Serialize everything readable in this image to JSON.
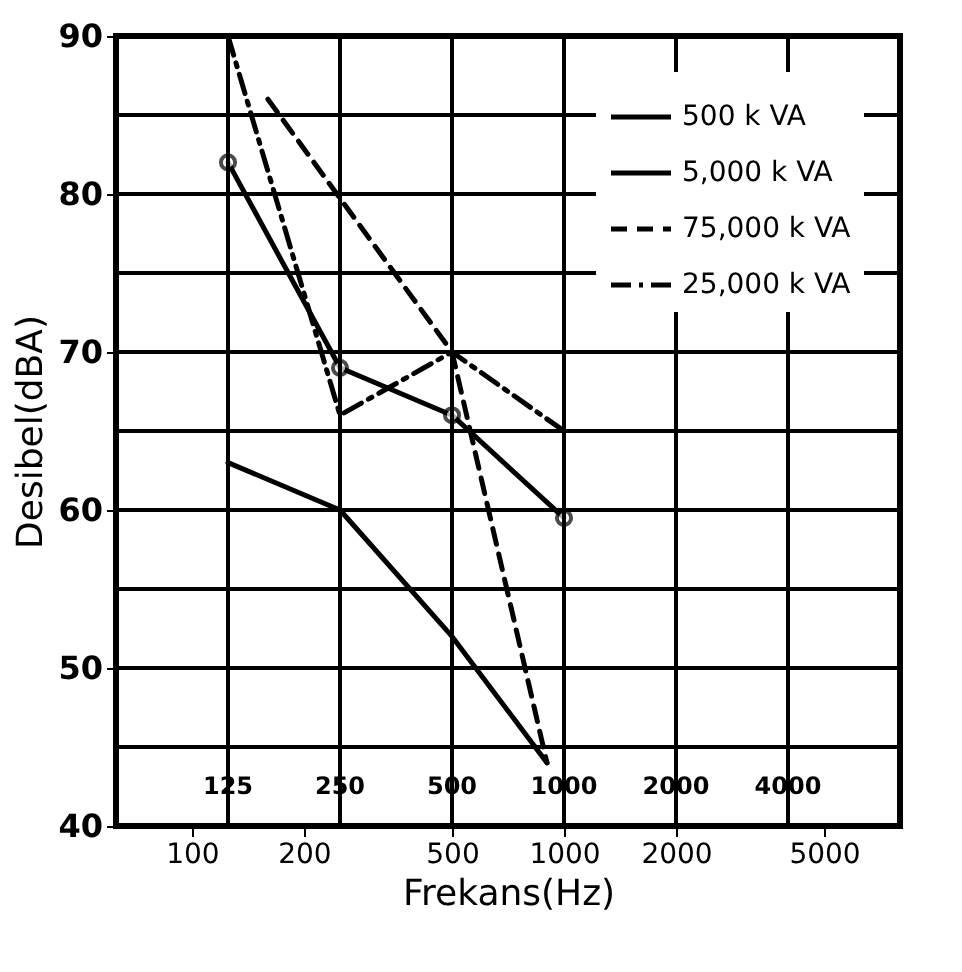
{
  "chart_data": {
    "type": "line",
    "xlabel": "Frekans(Hz)",
    "ylabel": "Desibel(dBA)",
    "log": "x",
    "xlim": [
      62.5,
      8000
    ],
    "xticks": [
      100,
      200,
      500,
      1000,
      2000,
      5000
    ],
    "ref_lines": [
      {
        "axis": "x",
        "value": 125,
        "label": "125"
      },
      {
        "axis": "x",
        "value": 250,
        "label": "250"
      },
      {
        "axis": "x",
        "value": 500,
        "label": "500"
      },
      {
        "axis": "x",
        "value": 1000,
        "label": "1000"
      },
      {
        "axis": "x",
        "value": 2000,
        "label": "2000"
      },
      {
        "axis": "x",
        "value": 4000,
        "label": "4000"
      }
    ],
    "ylim": [
      40,
      90
    ],
    "yticks": [
      40,
      {
        "value": 45,
        "label": null
      },
      50,
      {
        "value": 55,
        "label": null
      },
      60,
      {
        "value": 65,
        "label": null
      },
      70,
      {
        "value": 75,
        "label": null
      },
      80,
      {
        "value": 85,
        "label": null
      },
      90
    ],
    "grid": "y",
    "legend": "top right",
    "series": [
      {
        "name": "500 k VA",
        "color": "#000000",
        "line_style": "solid",
        "marker": "none",
        "x": [
          125,
          250,
          500,
          900
        ],
        "values": [
          63,
          60,
          52,
          44
        ]
      },
      {
        "name": "5,000 k VA",
        "color": "#000000",
        "line_style": "solid",
        "marker": "circle",
        "x": [
          125,
          250,
          500,
          1000
        ],
        "values": [
          82,
          69,
          66,
          59.5
        ]
      },
      {
        "name": "75,000 k VA",
        "color": "#000000",
        "line_style": "dashed",
        "marker": "none",
        "x": [
          160,
          500,
          900
        ],
        "values": [
          86,
          70,
          44
        ]
      },
      {
        "name": "25,000 k VA",
        "color": "#000000",
        "line_style": "dashdot",
        "marker": "none",
        "x": [
          125,
          250,
          500,
          1000
        ],
        "values": [
          90,
          66,
          70,
          65
        ]
      }
    ]
  }
}
